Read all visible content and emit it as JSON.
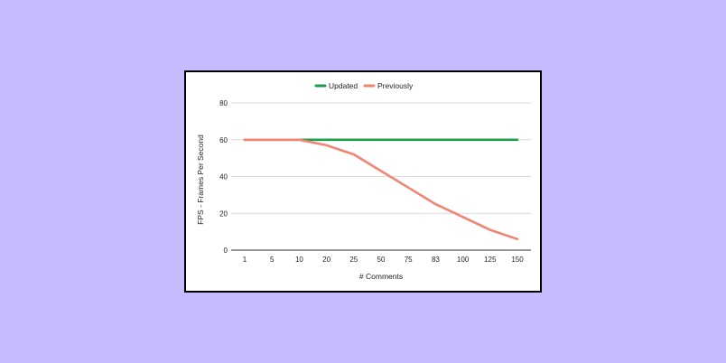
{
  "colors": {
    "background": "#c4bcff",
    "card": "#ffffff",
    "card_border": "#000000",
    "updated": "#1e9e4a",
    "previously": "#f28474",
    "grid": "#d9d9d9",
    "axis": "#333333"
  },
  "chart_data": {
    "type": "line",
    "title": "",
    "xlabel": "# Comments",
    "ylabel": "FPS - Frames Per Second",
    "categories": [
      "1",
      "5",
      "10",
      "20",
      "25",
      "50",
      "75",
      "83",
      "100",
      "125",
      "150"
    ],
    "yticks": [
      0,
      20,
      40,
      60,
      80
    ],
    "ylim": [
      0,
      80
    ],
    "grid": true,
    "legend_position": "top",
    "series": [
      {
        "name": "Updated",
        "color": "#1e9e4a",
        "values": [
          60,
          60,
          60,
          60,
          60,
          60,
          60,
          60,
          60,
          60,
          60
        ]
      },
      {
        "name": "Previously",
        "color": "#f28474",
        "values": [
          60,
          60,
          60,
          57,
          52,
          43,
          34,
          25,
          18,
          11,
          6
        ]
      }
    ]
  }
}
